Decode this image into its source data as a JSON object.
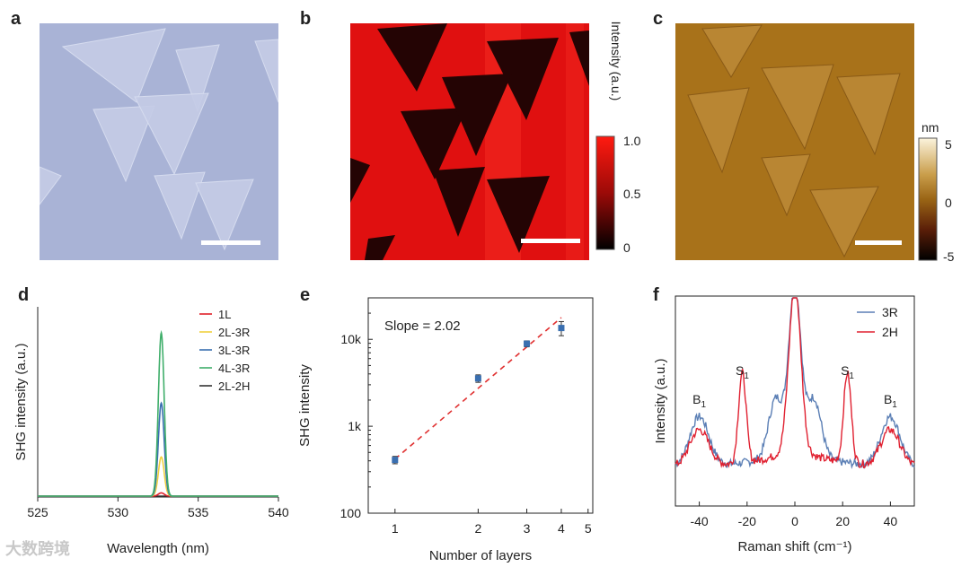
{
  "panel_labels": [
    "a",
    "b",
    "c",
    "d",
    "e",
    "f"
  ],
  "panel_b": {
    "colorbar_title": "Intensity (a.u.)",
    "ticks": [
      "1.0",
      "0.5",
      "0"
    ]
  },
  "panel_c": {
    "colorbar_unit": "nm",
    "ticks": [
      "5",
      "0",
      "-5"
    ]
  },
  "colors": {
    "optical_bg": "#a9b3d6",
    "optical_flake": "#c4cbe5",
    "shg_bg": "#e01010",
    "shg_flake": "#240404",
    "afm_bg": "#a8721a",
    "afm_flake": "#b98633",
    "c_1L": "#e0202a",
    "c_2L3R": "#f0d040",
    "c_3L3R": "#3a6fb0",
    "c_4L3R": "#3fae6a",
    "c_2L2H": "#333333",
    "c_fit": "#e03030",
    "c_point": "#3a6fb0",
    "c_3R": "#5b7fb5",
    "c_2H": "#e02030"
  },
  "chart_data": [
    {
      "panel": "d",
      "type": "line",
      "xlabel": "Wavelength (nm)",
      "ylabel": "SHG intensity (a.u.)",
      "xlim": [
        525,
        540
      ],
      "xticks": [
        "525",
        "530",
        "535",
        "540"
      ],
      "series": [
        {
          "name": "1L",
          "peak_center": 532.7,
          "peak_height": 0.02
        },
        {
          "name": "2L-3R",
          "peak_center": 532.7,
          "peak_height": 0.24
        },
        {
          "name": "3L-3R",
          "peak_center": 532.7,
          "peak_height": 0.57
        },
        {
          "name": "4L-3R",
          "peak_center": 532.7,
          "peak_height": 1.0
        },
        {
          "name": "2L-2H",
          "peak_center": 532.7,
          "peak_height": 0.0
        }
      ]
    },
    {
      "panel": "e",
      "type": "scatter",
      "xlabel": "Number of layers",
      "ylabel": "SHG intensity",
      "xscale": "log",
      "yscale": "log",
      "xlim": [
        0.8,
        5.2
      ],
      "ylim": [
        100,
        30000
      ],
      "xticks": [
        {
          "v": 1,
          "label": "1"
        },
        {
          "v": 2,
          "label": "2"
        },
        {
          "v": 3,
          "label": "3"
        },
        {
          "v": 4,
          "label": "4"
        },
        {
          "v": 5,
          "label": "5"
        }
      ],
      "yticks": [
        {
          "v": 100,
          "label": "100"
        },
        {
          "v": 1000,
          "label": "1k"
        },
        {
          "v": 10000,
          "label": "10k"
        }
      ],
      "annotation": "Slope = 2.02",
      "x": [
        1,
        2,
        3,
        4
      ],
      "y": [
        410,
        3550,
        8900,
        13500
      ],
      "y_err": [
        40,
        350,
        700,
        2500
      ],
      "fit": {
        "slope": 2.02,
        "x": [
          1,
          4
        ],
        "y": [
          420,
          17800
        ]
      }
    },
    {
      "panel": "f",
      "type": "line",
      "xlabel": "Raman shift (cm⁻¹)",
      "ylabel": "Intensity (a.u.)",
      "xlim": [
        -50,
        50
      ],
      "xticks": [
        "-40",
        "-20",
        "0",
        "20",
        "40"
      ],
      "xtick_values": [
        -40,
        -20,
        0,
        20,
        40
      ],
      "peak_labels": [
        {
          "base": "B",
          "sub": "1",
          "x": -40
        },
        {
          "base": "S",
          "sub": "1",
          "x": -22
        },
        {
          "base": "S",
          "sub": "1",
          "x": 22
        },
        {
          "base": "B",
          "sub": "1",
          "x": 40
        }
      ],
      "series": [
        {
          "name": "3R",
          "peaks": [
            [
              -40,
              0.3,
              4
            ],
            [
              -8,
              0.35,
              3
            ],
            [
              0,
              1.0,
              2.5
            ],
            [
              8,
              0.35,
              3
            ],
            [
              40,
              0.3,
              4
            ]
          ]
        },
        {
          "name": "2H",
          "peaks": [
            [
              -40,
              0.22,
              4
            ],
            [
              -22,
              0.55,
              1.6
            ],
            [
              0,
              1.0,
              2.5
            ],
            [
              22,
              0.55,
              1.6
            ],
            [
              40,
              0.22,
              4
            ]
          ]
        }
      ]
    }
  ],
  "watermark": "大数跨境"
}
